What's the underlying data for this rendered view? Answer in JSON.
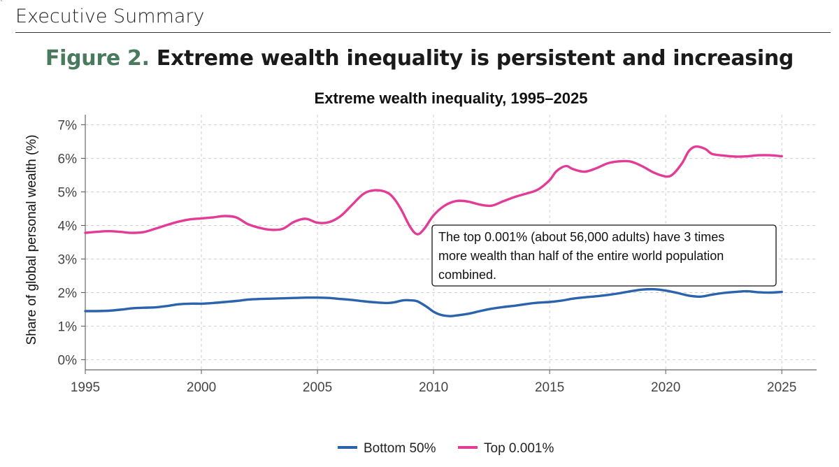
{
  "header": {
    "section_title": "Executive Summary"
  },
  "figure": {
    "number": "Figure 2.",
    "caption": "Extreme wealth inequality is persistent and increasing"
  },
  "chart_data": {
    "type": "line",
    "title": "Extreme wealth inequality, 1995–2025",
    "xlabel": "",
    "ylabel": "Share of global personal wealth (%)",
    "xlim": [
      1995,
      2026.5
    ],
    "ylim": [
      -0.3,
      7.3
    ],
    "xticks": [
      1995,
      2000,
      2005,
      2010,
      2015,
      2020,
      2025
    ],
    "xtick_labels": [
      "1995",
      "2000",
      "2005",
      "2010",
      "2015",
      "2020",
      "2025"
    ],
    "yticks": [
      0,
      1,
      2,
      3,
      4,
      5,
      6,
      7
    ],
    "ytick_labels": [
      "0%",
      "1%",
      "2%",
      "3%",
      "4%",
      "5%",
      "6%",
      "7%"
    ],
    "grid": true,
    "legend_position": "bottom-center",
    "series": [
      {
        "name": "Bottom 50%",
        "color": "#2c63ad",
        "points": [
          [
            1995,
            1.45
          ],
          [
            1995.5,
            1.45
          ],
          [
            1996,
            1.46
          ],
          [
            1996.5,
            1.49
          ],
          [
            1997,
            1.53
          ],
          [
            1997.5,
            1.55
          ],
          [
            1998,
            1.56
          ],
          [
            1998.5,
            1.6
          ],
          [
            1999,
            1.65
          ],
          [
            1999.5,
            1.67
          ],
          [
            2000,
            1.67
          ],
          [
            2000.5,
            1.69
          ],
          [
            2001,
            1.72
          ],
          [
            2001.5,
            1.75
          ],
          [
            2002,
            1.79
          ],
          [
            2002.5,
            1.81
          ],
          [
            2003,
            1.82
          ],
          [
            2003.5,
            1.83
          ],
          [
            2004,
            1.84
          ],
          [
            2004.5,
            1.85
          ],
          [
            2005,
            1.85
          ],
          [
            2005.5,
            1.84
          ],
          [
            2006,
            1.81
          ],
          [
            2006.5,
            1.78
          ],
          [
            2007,
            1.74
          ],
          [
            2007.5,
            1.71
          ],
          [
            2008,
            1.69
          ],
          [
            2008.3,
            1.71
          ],
          [
            2008.7,
            1.77
          ],
          [
            2009,
            1.77
          ],
          [
            2009.3,
            1.74
          ],
          [
            2009.7,
            1.58
          ],
          [
            2010,
            1.43
          ],
          [
            2010.3,
            1.34
          ],
          [
            2010.7,
            1.3
          ],
          [
            2011,
            1.32
          ],
          [
            2011.5,
            1.37
          ],
          [
            2012,
            1.45
          ],
          [
            2012.5,
            1.52
          ],
          [
            2013,
            1.57
          ],
          [
            2013.5,
            1.61
          ],
          [
            2014,
            1.66
          ],
          [
            2014.5,
            1.7
          ],
          [
            2015,
            1.72
          ],
          [
            2015.5,
            1.76
          ],
          [
            2016,
            1.82
          ],
          [
            2016.5,
            1.86
          ],
          [
            2017,
            1.89
          ],
          [
            2017.5,
            1.93
          ],
          [
            2018,
            1.98
          ],
          [
            2018.5,
            2.04
          ],
          [
            2019,
            2.09
          ],
          [
            2019.5,
            2.1
          ],
          [
            2020,
            2.06
          ],
          [
            2020.5,
            1.99
          ],
          [
            2021,
            1.91
          ],
          [
            2021.5,
            1.88
          ],
          [
            2022,
            1.94
          ],
          [
            2022.5,
            1.99
          ],
          [
            2023,
            2.02
          ],
          [
            2023.5,
            2.04
          ],
          [
            2024,
            2.01
          ],
          [
            2024.5,
            2.0
          ],
          [
            2025,
            2.02
          ]
        ]
      },
      {
        "name": "Top 0.001%",
        "color": "#e23c96",
        "points": [
          [
            1995,
            3.78
          ],
          [
            1995.5,
            3.81
          ],
          [
            1996,
            3.83
          ],
          [
            1996.5,
            3.81
          ],
          [
            1997,
            3.78
          ],
          [
            1997.5,
            3.8
          ],
          [
            1998,
            3.9
          ],
          [
            1998.5,
            4.01
          ],
          [
            1999,
            4.11
          ],
          [
            1999.5,
            4.18
          ],
          [
            2000,
            4.21
          ],
          [
            2000.5,
            4.24
          ],
          [
            2001,
            4.28
          ],
          [
            2001.5,
            4.24
          ],
          [
            2002,
            4.04
          ],
          [
            2002.5,
            3.93
          ],
          [
            2003,
            3.87
          ],
          [
            2003.5,
            3.9
          ],
          [
            2004,
            4.11
          ],
          [
            2004.5,
            4.2
          ],
          [
            2005,
            4.08
          ],
          [
            2005.5,
            4.1
          ],
          [
            2006,
            4.28
          ],
          [
            2006.5,
            4.62
          ],
          [
            2007,
            4.95
          ],
          [
            2007.5,
            5.05
          ],
          [
            2008,
            4.98
          ],
          [
            2008.3,
            4.8
          ],
          [
            2008.6,
            4.48
          ],
          [
            2009,
            3.95
          ],
          [
            2009.3,
            3.74
          ],
          [
            2009.6,
            3.9
          ],
          [
            2010,
            4.3
          ],
          [
            2010.5,
            4.6
          ],
          [
            2011,
            4.73
          ],
          [
            2011.5,
            4.71
          ],
          [
            2012,
            4.62
          ],
          [
            2012.5,
            4.59
          ],
          [
            2013,
            4.72
          ],
          [
            2013.5,
            4.85
          ],
          [
            2014,
            4.95
          ],
          [
            2014.5,
            5.07
          ],
          [
            2015,
            5.35
          ],
          [
            2015.3,
            5.62
          ],
          [
            2015.7,
            5.77
          ],
          [
            2016,
            5.68
          ],
          [
            2016.5,
            5.6
          ],
          [
            2017,
            5.7
          ],
          [
            2017.5,
            5.85
          ],
          [
            2018,
            5.91
          ],
          [
            2018.5,
            5.9
          ],
          [
            2019,
            5.76
          ],
          [
            2019.5,
            5.57
          ],
          [
            2020,
            5.46
          ],
          [
            2020.3,
            5.52
          ],
          [
            2020.7,
            5.85
          ],
          [
            2021,
            6.22
          ],
          [
            2021.3,
            6.35
          ],
          [
            2021.7,
            6.28
          ],
          [
            2022,
            6.13
          ],
          [
            2022.5,
            6.08
          ],
          [
            2023,
            6.05
          ],
          [
            2023.5,
            6.06
          ],
          [
            2024,
            6.09
          ],
          [
            2024.5,
            6.09
          ],
          [
            2025,
            6.06
          ]
        ]
      }
    ],
    "annotation": {
      "lines": [
        "The top 0.001% (about 56,000 adults) have 3 times",
        "more wealth than half of the entire world population",
        "combined."
      ]
    }
  }
}
